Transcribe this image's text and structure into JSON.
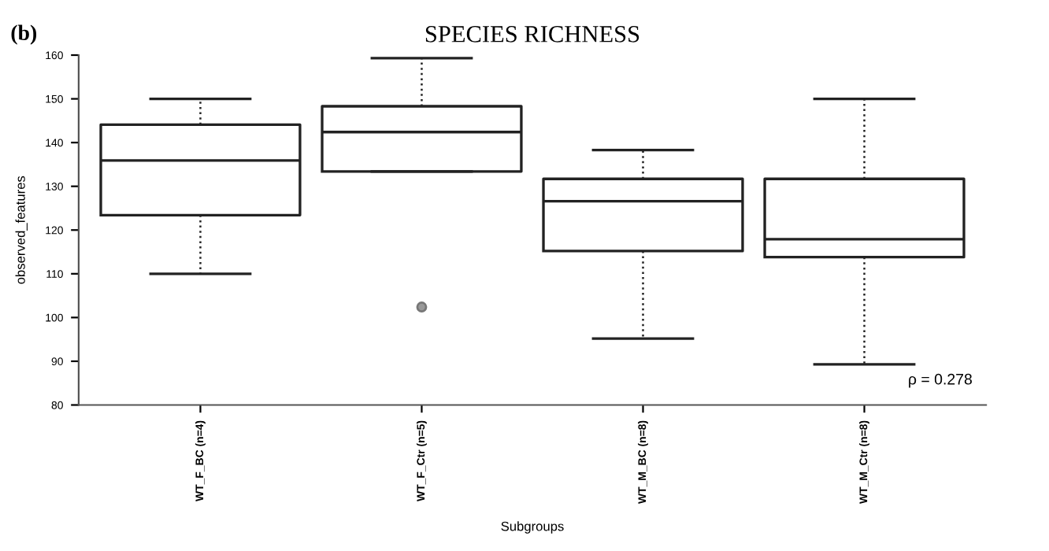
{
  "chart_data": {
    "type": "box",
    "title": "SPECIES RICHNESS",
    "xlabel": "Subgroups",
    "ylabel": "observed_features",
    "categories": [
      "WT_F_BC (n=4)",
      "WT_F_Ctr (n=5)",
      "WT_M_BC (n=8)",
      "WT_M_Ctr (n=8)"
    ],
    "boxes": [
      {
        "low": 110,
        "q1": 123.4,
        "median": 135.9,
        "q3": 144.1,
        "high": 150
      },
      {
        "low": 133.4,
        "q1": 133.4,
        "median": 142.4,
        "q3": 148.3,
        "high": 159.3,
        "outliers": [
          102.4
        ]
      },
      {
        "low": 95.2,
        "q1": 115.2,
        "median": 126.6,
        "q3": 131.7,
        "high": 138.3
      },
      {
        "low": 89.3,
        "q1": 113.8,
        "median": 117.9,
        "q3": 131.7,
        "high": 150
      }
    ],
    "color": "#222222",
    "ylim": [
      80,
      160
    ],
    "yticks": [
      80,
      90,
      100,
      110,
      120,
      130,
      140,
      150,
      160
    ],
    "grid": false,
    "annotations": [
      "(b)",
      "ρ = 0.278"
    ]
  }
}
